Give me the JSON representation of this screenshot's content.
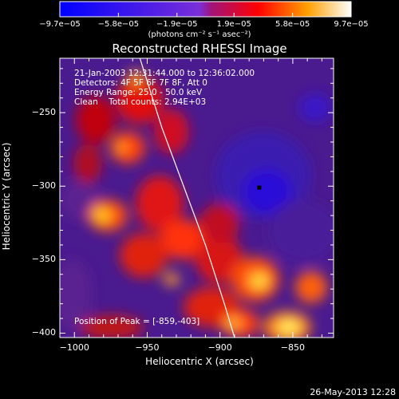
{
  "chart_data": {
    "type": "heatmap",
    "title": "Reconstructed RHESSI Image",
    "xlabel": "Heliocentric X (arcsec)",
    "ylabel": "Heliocentric Y (arcsec)",
    "xlim": [
      -1010,
      -822
    ],
    "ylim": [
      -403,
      -213
    ],
    "x_ticks": [
      -1000,
      -950,
      -900,
      -850
    ],
    "y_ticks": [
      -250,
      -300,
      -350,
      -400
    ],
    "x_tick_labels": [
      "−1000",
      "−950",
      "−900",
      "−850"
    ],
    "y_tick_labels": [
      "−250",
      "−300",
      "−350",
      "−400"
    ],
    "colorbar": {
      "tick_labels": [
        "−9.7e−05",
        "−5.8e−05",
        "−1.9e−05",
        "1.9e−05",
        "5.8e−05",
        "9.7e−05"
      ],
      "ticks": [
        -9.7e-05,
        -5.8e-05,
        -1.9e-05,
        1.9e-05,
        5.8e-05,
        9.7e-05
      ],
      "units_label": "(photons cm⁻² s⁻¹ asec⁻²)",
      "range": [
        -9.7e-05,
        9.7e-05
      ]
    },
    "annotations": {
      "time_range": "21-Jan-2003 12:31:44.000 to 12:36:02.000",
      "detectors": "Detectors: 4F 5F 6F 7F 8F, Att 0",
      "energy": "Energy Range: 25.0 - 50.0 keV",
      "method": "Clean    Total counts: 2.94E+03",
      "peak": "Position of Peak = [-859,-403]"
    },
    "limb_curve": [
      [
        -955,
        -213
      ],
      [
        -940,
        -260
      ],
      [
        -925,
        -300
      ],
      [
        -910,
        -340
      ],
      [
        -897,
        -380
      ],
      [
        -890,
        -403
      ]
    ],
    "minimum_marker": [
      -873,
      -301
    ]
  },
  "footer": {
    "timestamp": "26-May-2013 12:28"
  },
  "colors": {
    "background": "#000000",
    "text": "#ffffff"
  }
}
